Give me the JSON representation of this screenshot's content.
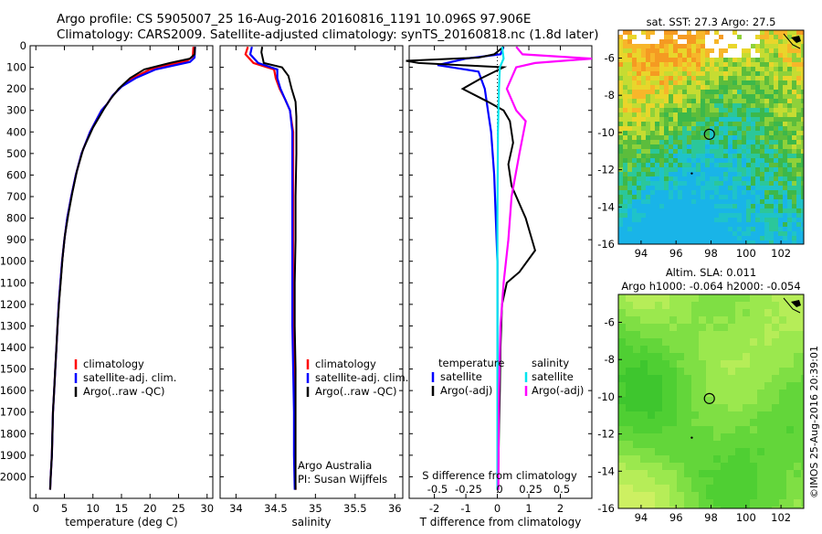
{
  "header": {
    "line1": "Argo profile: CS 5905007_25 16-Aug-2016 20160816_1191 10.096S 97.906E",
    "line2": "Climatology: CARS2009. Satellite-adjusted climatology: synTS_20160818.nc (1.8d later)"
  },
  "side_label": "©IMOS 25-Aug-2016 20:39:01",
  "colors": {
    "climatology": "#ff0000",
    "satellite": "#0000ff",
    "argo": "#000000",
    "salinity_satellite": "#00e5ee",
    "salinity_argo": "#ff00ff"
  },
  "chart_data": [
    {
      "type": "line",
      "id": "temperature",
      "xlabel": "temperature (deg C)",
      "ylim": [
        2100,
        0
      ],
      "xlim": [
        -1,
        31
      ],
      "xticks": [
        0,
        5,
        10,
        15,
        20,
        25,
        30
      ],
      "yticks": [
        0,
        100,
        200,
        300,
        400,
        500,
        600,
        700,
        800,
        900,
        1000,
        1100,
        1200,
        1300,
        1400,
        1500,
        1600,
        1700,
        1800,
        1900,
        2000
      ],
      "legend": [
        "climatology",
        "satellite-adj. clim.",
        "Argo(..raw -QC)"
      ],
      "series": [
        {
          "name": "climatology",
          "color": "#ff0000",
          "points": [
            [
              27.6,
              5
            ],
            [
              27.5,
              50
            ],
            [
              26.5,
              70
            ],
            [
              20,
              110
            ],
            [
              17,
              150
            ],
            [
              15,
              190
            ],
            [
              13.5,
              230
            ],
            [
              12.5,
              270
            ],
            [
              11.5,
              300
            ],
            [
              9.5,
              400
            ],
            [
              8,
              500
            ],
            [
              7,
              600
            ],
            [
              6.2,
              700
            ],
            [
              5.5,
              800
            ],
            [
              5.0,
              900
            ],
            [
              4.6,
              1000
            ],
            [
              4.3,
              1100
            ],
            [
              4.0,
              1200
            ],
            [
              3.8,
              1300
            ],
            [
              3.6,
              1400
            ],
            [
              3.4,
              1500
            ],
            [
              3.2,
              1600
            ],
            [
              3.0,
              1700
            ],
            [
              2.9,
              1800
            ],
            [
              2.8,
              1900
            ],
            [
              2.6,
              2000
            ],
            [
              2.5,
              2060
            ]
          ]
        },
        {
          "name": "satellite-adj. clim.",
          "color": "#0000ff",
          "points": [
            [
              27.9,
              5
            ],
            [
              27.8,
              55
            ],
            [
              27.0,
              75
            ],
            [
              21,
              110
            ],
            [
              17.5,
              150
            ],
            [
              15,
              190
            ],
            [
              13.5,
              230
            ],
            [
              12.5,
              270
            ],
            [
              11.5,
              300
            ],
            [
              9.5,
              400
            ],
            [
              8,
              500
            ],
            [
              7,
              600
            ],
            [
              6.2,
              700
            ],
            [
              5.5,
              800
            ],
            [
              5.0,
              900
            ],
            [
              4.6,
              1000
            ],
            [
              4.3,
              1100
            ],
            [
              4.0,
              1200
            ],
            [
              3.8,
              1300
            ],
            [
              3.6,
              1400
            ],
            [
              3.4,
              1500
            ],
            [
              3.2,
              1600
            ],
            [
              3.0,
              1700
            ],
            [
              2.9,
              1800
            ],
            [
              2.8,
              1900
            ],
            [
              2.6,
              2000
            ],
            [
              2.5,
              2060
            ]
          ]
        },
        {
          "name": "Argo(..raw -QC)",
          "color": "#000000",
          "points": [
            [
              27.9,
              5
            ],
            [
              27.8,
              40
            ],
            [
              27.0,
              60
            ],
            [
              23.5,
              80
            ],
            [
              19,
              110
            ],
            [
              16.5,
              150
            ],
            [
              14.5,
              200
            ],
            [
              13,
              250
            ],
            [
              12,
              290
            ],
            [
              10,
              380
            ],
            [
              8.3,
              480
            ],
            [
              7.2,
              580
            ],
            [
              6.4,
              680
            ],
            [
              5.7,
              780
            ],
            [
              5.1,
              880
            ],
            [
              4.7,
              980
            ],
            [
              4.4,
              1080
            ],
            [
              4.1,
              1180
            ],
            [
              3.8,
              1300
            ],
            [
              3.6,
              1400
            ],
            [
              3.4,
              1500
            ],
            [
              3.2,
              1600
            ],
            [
              3.0,
              1700
            ],
            [
              2.9,
              1800
            ],
            [
              2.8,
              1900
            ],
            [
              2.6,
              2000
            ],
            [
              2.5,
              2060
            ]
          ]
        }
      ]
    },
    {
      "type": "line",
      "id": "salinity",
      "xlabel": "salinity",
      "ylim": [
        2100,
        0
      ],
      "xlim": [
        33.8,
        36.1
      ],
      "xticks": [
        34,
        34.5,
        35,
        35.5,
        36
      ],
      "legend": [
        "climatology",
        "satellite-adj. clim.",
        "Argo(..raw -QC)"
      ],
      "annotation": [
        "Argo Australia",
        "PI: Susan Wijffels"
      ],
      "series": [
        {
          "name": "climatology",
          "color": "#ff0000",
          "points": [
            [
              34.15,
              5
            ],
            [
              34.12,
              40
            ],
            [
              34.22,
              80
            ],
            [
              34.48,
              110
            ],
            [
              34.5,
              150
            ],
            [
              34.55,
              200
            ],
            [
              34.62,
              250
            ],
            [
              34.68,
              300
            ],
            [
              34.72,
              400
            ],
            [
              34.72,
              500
            ],
            [
              34.72,
              700
            ],
            [
              34.72,
              900
            ],
            [
              34.72,
              1100
            ],
            [
              34.72,
              1300
            ],
            [
              34.73,
              1500
            ],
            [
              34.74,
              1700
            ],
            [
              34.74,
              1900
            ],
            [
              34.75,
              2060
            ]
          ]
        },
        {
          "name": "satellite-adj. clim.",
          "color": "#0000ff",
          "points": [
            [
              34.2,
              5
            ],
            [
              34.18,
              40
            ],
            [
              34.28,
              80
            ],
            [
              34.52,
              110
            ],
            [
              34.52,
              150
            ],
            [
              34.56,
              200
            ],
            [
              34.62,
              250
            ],
            [
              34.68,
              300
            ],
            [
              34.71,
              400
            ],
            [
              34.71,
              500
            ],
            [
              34.71,
              700
            ],
            [
              34.71,
              900
            ],
            [
              34.71,
              1100
            ],
            [
              34.71,
              1300
            ],
            [
              34.72,
              1500
            ],
            [
              34.73,
              1700
            ],
            [
              34.73,
              1900
            ],
            [
              34.74,
              2060
            ]
          ]
        },
        {
          "name": "Argo(..raw -QC)",
          "color": "#000000",
          "points": [
            [
              34.33,
              5
            ],
            [
              34.32,
              30
            ],
            [
              34.35,
              80
            ],
            [
              34.58,
              100
            ],
            [
              34.66,
              140
            ],
            [
              34.7,
              200
            ],
            [
              34.75,
              260
            ],
            [
              34.76,
              330
            ],
            [
              34.76,
              400
            ],
            [
              34.76,
              500
            ],
            [
              34.75,
              700
            ],
            [
              34.75,
              900
            ],
            [
              34.74,
              1100
            ],
            [
              34.74,
              1300
            ],
            [
              34.75,
              1500
            ],
            [
              34.75,
              1700
            ],
            [
              34.75,
              1900
            ],
            [
              34.75,
              2060
            ]
          ]
        }
      ]
    },
    {
      "type": "line",
      "id": "difference",
      "xlabel": "T difference from climatology",
      "top_label": "S difference from climatology",
      "ylim": [
        2100,
        0
      ],
      "xlim": [
        -2.8,
        3.0
      ],
      "xticks": [
        -2,
        -1,
        0,
        1,
        2
      ],
      "top_ticks": [
        "-0.5",
        "-0.25",
        "0",
        "0.25",
        "0.5"
      ],
      "legend_left_title": "temperature",
      "legend_right_title": "salinity",
      "legend_left": [
        "satellite",
        "Argo(-adj)"
      ],
      "legend_right": [
        "satellite",
        "Argo(-adj)"
      ],
      "series": [
        {
          "name": "T satellite",
          "color": "#0000ff",
          "points": [
            [
              0.2,
              5
            ],
            [
              0.1,
              40
            ],
            [
              -1.0,
              60
            ],
            [
              -1.9,
              90
            ],
            [
              -0.6,
              120
            ],
            [
              -0.4,
              200
            ],
            [
              -0.3,
              300
            ],
            [
              -0.2,
              400
            ],
            [
              -0.1,
              600
            ],
            [
              0,
              1000
            ],
            [
              0,
              1500
            ],
            [
              0,
              2060
            ]
          ]
        },
        {
          "name": "T Argo(-adj)",
          "color": "#000000",
          "points": [
            [
              0.2,
              5
            ],
            [
              -0.1,
              40
            ],
            [
              -0.6,
              55
            ],
            [
              -2.9,
              70
            ],
            [
              -2.5,
              80
            ],
            [
              0.2,
              100
            ],
            [
              -0.5,
              150
            ],
            [
              -1.1,
              200
            ],
            [
              -0.3,
              260
            ],
            [
              0.2,
              300
            ],
            [
              0.4,
              350
            ],
            [
              0.5,
              450
            ],
            [
              0.35,
              550
            ],
            [
              0.45,
              650
            ],
            [
              0.9,
              800
            ],
            [
              1.2,
              950
            ],
            [
              0.7,
              1050
            ],
            [
              0.3,
              1100
            ],
            [
              0.15,
              1200
            ],
            [
              0.1,
              1400
            ],
            [
              0.08,
              1600
            ],
            [
              0.05,
              1800
            ],
            [
              0.02,
              2060
            ]
          ]
        },
        {
          "name": "S satellite",
          "color": "#00e5ee",
          "points": [
            [
              0.15,
              5
            ],
            [
              0.2,
              60
            ],
            [
              0.08,
              100
            ],
            [
              0.05,
              200
            ],
            [
              0.02,
              400
            ],
            [
              0,
              800
            ],
            [
              0,
              1400
            ],
            [
              0,
              2060
            ]
          ]
        },
        {
          "name": "S Argo(-adj)",
          "color": "#ff00ff",
          "points": [
            [
              0.6,
              5
            ],
            [
              0.8,
              40
            ],
            [
              3.0,
              60
            ],
            [
              1.2,
              80
            ],
            [
              0.6,
              100
            ],
            [
              0.3,
              200
            ],
            [
              0.6,
              300
            ],
            [
              0.9,
              350
            ],
            [
              0.7,
              500
            ],
            [
              0.45,
              700
            ],
            [
              0.35,
              900
            ],
            [
              0.2,
              1100
            ],
            [
              0.1,
              1300
            ],
            [
              0.05,
              1600
            ],
            [
              0.03,
              2060
            ]
          ]
        }
      ]
    },
    {
      "type": "heatmap",
      "id": "sst-map",
      "title": "sat. SST: 27.3  Argo: 27.5",
      "xticks": [
        94,
        96,
        98,
        100,
        102
      ],
      "yticks": [
        -6,
        -8,
        -10,
        -12,
        -14,
        -16
      ],
      "xlim": [
        92.7,
        103.3
      ],
      "ylim": [
        -16,
        -4.5
      ],
      "marker": {
        "lon": 97.906,
        "lat": -10.096
      }
    },
    {
      "type": "heatmap",
      "id": "sla-map",
      "title": "Altim. SLA: 0.011",
      "subtitle": "Argo h1000: -0.064 h2000: -0.054",
      "xticks": [
        94,
        96,
        98,
        100,
        102
      ],
      "yticks": [
        -6,
        -8,
        -10,
        -12,
        -14,
        -16
      ],
      "xlim": [
        92.7,
        103.3
      ],
      "ylim": [
        -16,
        -4.5
      ],
      "marker": {
        "lon": 97.906,
        "lat": -10.096
      }
    }
  ]
}
